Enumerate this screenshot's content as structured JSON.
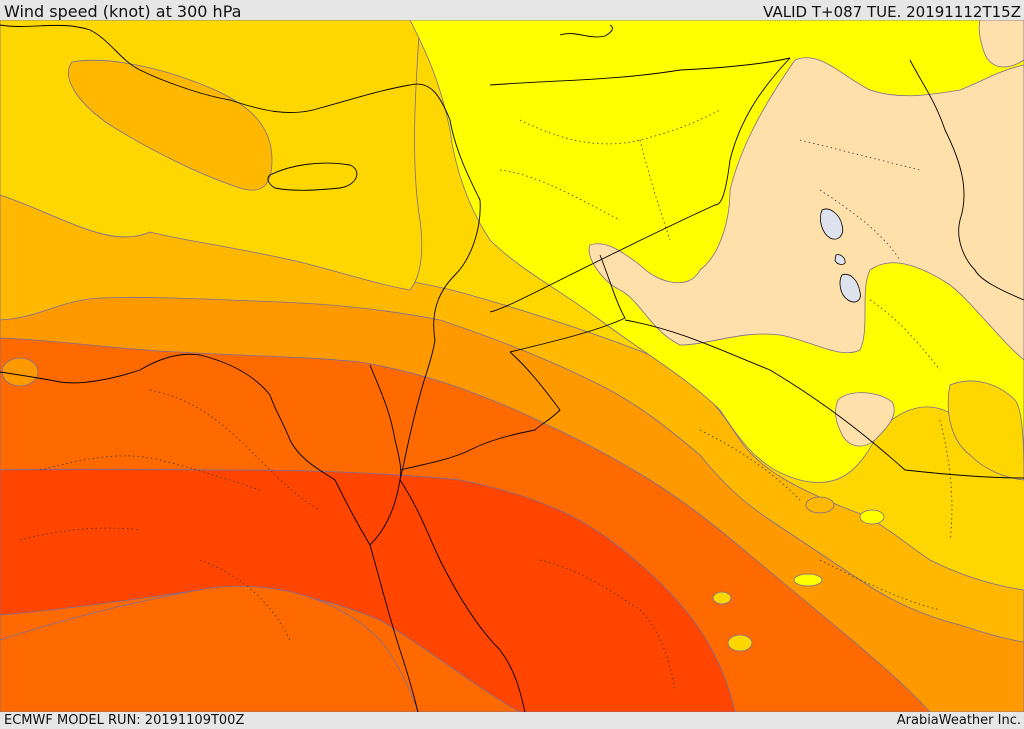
{
  "header": {
    "title": "Wind speed (knot) at 300 hPa",
    "valid": "VALID T+087 TUE. 20191112T15Z"
  },
  "footer": {
    "model_run": "ECMWF MODEL RUN: 20191109T00Z",
    "brand": "ArabiaWeather Inc."
  },
  "colors": {
    "band_20_40": "#ffdfaa",
    "band_40_60": "#ffff00",
    "band_60_80": "#ffd700",
    "band_80_100": "#ffb800",
    "band_100_120": "#ff9900",
    "band_120_140": "#ff6a00",
    "band_140_plus": "#ff4500",
    "contour": "#7a6a9a",
    "lake": "#dde2ec",
    "borders": "#000000"
  }
}
